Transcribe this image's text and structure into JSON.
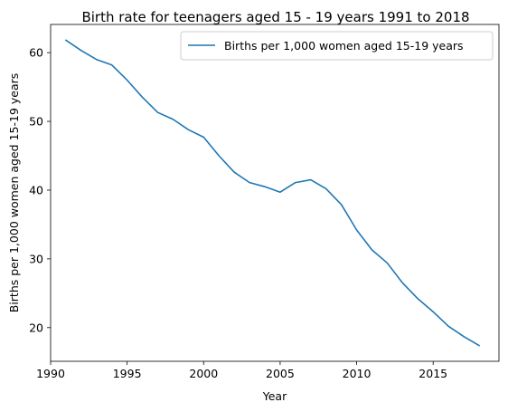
{
  "chart_data": {
    "type": "line",
    "title": "Birth rate for teenagers aged 15 - 19 years 1991 to 2018",
    "xlabel": "Year",
    "ylabel": "Births per 1,000 women aged 15-19 years",
    "xlim": [
      1990,
      2019.3
    ],
    "ylim": [
      15.1,
      64.1
    ],
    "xticks": [
      1990,
      1995,
      2000,
      2005,
      2010,
      2015
    ],
    "yticks": [
      20,
      30,
      40,
      50,
      60
    ],
    "grid": false,
    "legend_position": "top-right",
    "series": [
      {
        "name": "Births per 1,000 women aged 15-19 years",
        "color": "#1f77b4",
        "x": [
          1991,
          1992,
          1993,
          1994,
          1995,
          1996,
          1997,
          1998,
          1999,
          2000,
          2001,
          2002,
          2003,
          2004,
          2005,
          2006,
          2007,
          2008,
          2009,
          2010,
          2011,
          2012,
          2013,
          2014,
          2015,
          2016,
          2017,
          2018
        ],
        "values": [
          61.8,
          60.3,
          59.0,
          58.2,
          56.0,
          53.5,
          51.3,
          50.3,
          48.8,
          47.7,
          45.0,
          42.6,
          41.1,
          40.5,
          39.7,
          41.1,
          41.5,
          40.2,
          37.9,
          34.2,
          31.3,
          29.4,
          26.5,
          24.2,
          22.3,
          20.2,
          18.7,
          17.4
        ]
      }
    ]
  }
}
